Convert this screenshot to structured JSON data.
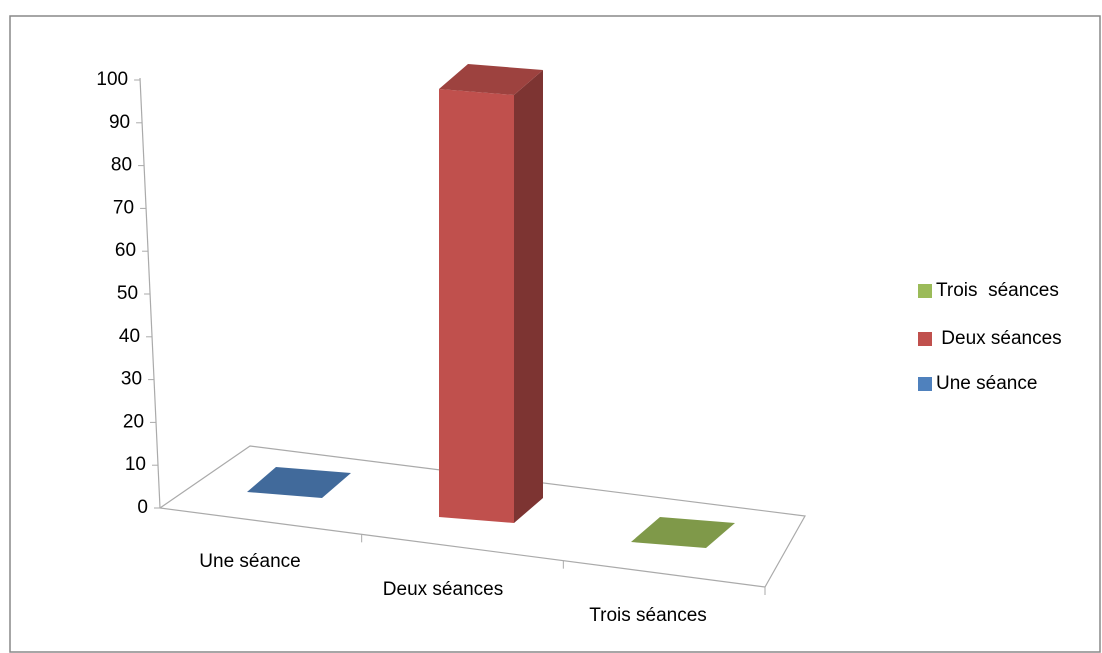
{
  "chart_data": {
    "type": "bar3d",
    "categories": [
      "Une séance",
      "Deux séances",
      "Trois séances"
    ],
    "series": [
      {
        "name": "Une séance",
        "color": "#4f81bd",
        "values": [
          0,
          null,
          null
        ]
      },
      {
        "name": " Deux séances",
        "color": "#c0504d",
        "values": [
          null,
          100,
          null
        ]
      },
      {
        "name": "Trois  séances",
        "color": "#9bbb59",
        "values": [
          null,
          null,
          0
        ]
      }
    ],
    "ylim": [
      0,
      100
    ],
    "yticks": [
      0,
      10,
      20,
      30,
      40,
      50,
      60,
      70,
      80,
      90,
      100
    ],
    "legend": "right"
  }
}
